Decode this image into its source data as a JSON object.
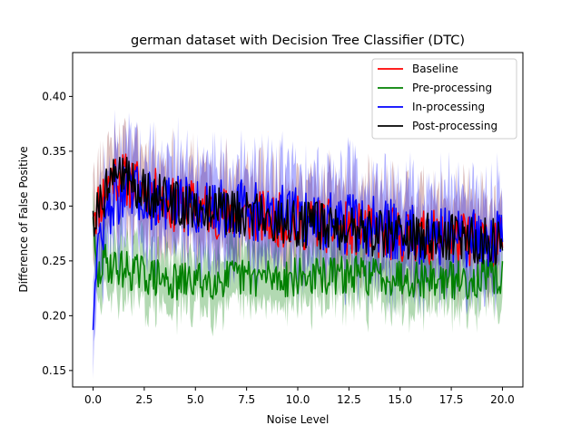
{
  "chart_data": {
    "type": "line",
    "title": "german dataset with Decision Tree Classifier (DTC)",
    "xlabel": "Noise Level",
    "ylabel": "Difference of False Positive",
    "xlim": [
      -1.0,
      21.0
    ],
    "ylim": [
      0.135,
      0.44
    ],
    "xticks": [
      0.0,
      2.5,
      5.0,
      7.5,
      10.0,
      12.5,
      15.0,
      17.5,
      20.0
    ],
    "xtick_labels": [
      "0.0",
      "2.5",
      "5.0",
      "7.5",
      "10.0",
      "12.5",
      "15.0",
      "17.5",
      "20.0"
    ],
    "yticks": [
      0.15,
      0.2,
      0.25,
      0.3,
      0.35,
      0.4
    ],
    "ytick_labels": [
      "0.15",
      "0.20",
      "0.25",
      "0.30",
      "0.35",
      "0.40"
    ],
    "grid": false,
    "legend_position": "top-right",
    "x_range": [
      0.0,
      20.0
    ],
    "series": [
      {
        "name": "Baseline",
        "color": "#ff0000",
        "band_color": "#8b2a2a",
        "values": [
          [
            0.0,
            0.29
          ],
          [
            1.0,
            0.33
          ],
          [
            2.0,
            0.32
          ],
          [
            3.0,
            0.31
          ],
          [
            4.0,
            0.3
          ],
          [
            5.0,
            0.3
          ],
          [
            6.0,
            0.295
          ],
          [
            8.0,
            0.29
          ],
          [
            10.0,
            0.285
          ],
          [
            12.0,
            0.28
          ],
          [
            14.0,
            0.275
          ],
          [
            16.0,
            0.272
          ],
          [
            18.0,
            0.27
          ],
          [
            20.0,
            0.268
          ]
        ],
        "noise": 0.025,
        "band": 0.035
      },
      {
        "name": "Pre-processing",
        "color": "#008000",
        "band_color": "#008000",
        "values": [
          [
            0.0,
            0.29
          ],
          [
            0.2,
            0.23
          ],
          [
            0.5,
            0.25
          ],
          [
            1.0,
            0.245
          ],
          [
            2.0,
            0.24
          ],
          [
            3.0,
            0.235
          ],
          [
            4.0,
            0.23
          ],
          [
            5.0,
            0.232
          ],
          [
            7.5,
            0.235
          ],
          [
            10.0,
            0.235
          ],
          [
            12.5,
            0.237
          ],
          [
            15.0,
            0.236
          ],
          [
            17.5,
            0.232
          ],
          [
            20.0,
            0.235
          ]
        ],
        "noise": 0.018,
        "band": 0.025
      },
      {
        "name": "In-processing",
        "color": "#0000ff",
        "band_color": "#0000ff",
        "values": [
          [
            0.0,
            0.187
          ],
          [
            0.1,
            0.23
          ],
          [
            0.3,
            0.27
          ],
          [
            1.0,
            0.31
          ],
          [
            2.0,
            0.31
          ],
          [
            3.0,
            0.305
          ],
          [
            4.0,
            0.3
          ],
          [
            6.0,
            0.3
          ],
          [
            8.0,
            0.295
          ],
          [
            10.0,
            0.29
          ],
          [
            12.0,
            0.285
          ],
          [
            14.0,
            0.28
          ],
          [
            16.0,
            0.275
          ],
          [
            18.0,
            0.272
          ],
          [
            20.0,
            0.27
          ]
        ],
        "noise": 0.028,
        "band": 0.04
      },
      {
        "name": "Post-processing",
        "color": "#000000",
        "band_color": "#8b2a2a",
        "values": [
          [
            0.0,
            0.29
          ],
          [
            1.0,
            0.33
          ],
          [
            2.0,
            0.32
          ],
          [
            3.0,
            0.31
          ],
          [
            4.0,
            0.3
          ],
          [
            5.0,
            0.3
          ],
          [
            6.0,
            0.295
          ],
          [
            8.0,
            0.29
          ],
          [
            10.0,
            0.285
          ],
          [
            12.0,
            0.28
          ],
          [
            14.0,
            0.275
          ],
          [
            16.0,
            0.272
          ],
          [
            18.0,
            0.27
          ],
          [
            20.0,
            0.268
          ]
        ],
        "noise": 0.022,
        "band": 0.0
      }
    ]
  }
}
